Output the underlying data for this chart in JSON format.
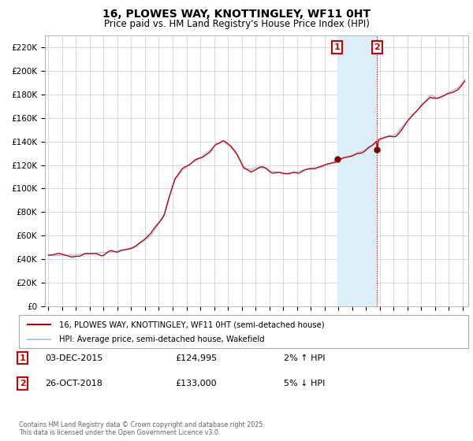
{
  "title": "16, PLOWES WAY, KNOTTINGLEY, WF11 0HT",
  "subtitle": "Price paid vs. HM Land Registry's House Price Index (HPI)",
  "ylim": [
    0,
    230000
  ],
  "sale1_date": "03-DEC-2015",
  "sale1_price": 124995,
  "sale1_pct": "2% ↑ HPI",
  "sale2_date": "26-OCT-2018",
  "sale2_price": 133000,
  "sale2_pct": "5% ↓ HPI",
  "legend_house": "16, PLOWES WAY, KNOTTINGLEY, WF11 0HT (semi-detached house)",
  "legend_hpi": "HPI: Average price, semi-detached house, Wakefield",
  "footer": "Contains HM Land Registry data © Crown copyright and database right 2025.\nThis data is licensed under the Open Government Licence v3.0.",
  "house_color": "#cc0000",
  "hpi_color": "#aac8e8",
  "bg_color": "#ffffff",
  "plot_bg": "#ffffff",
  "grid_color": "#cccccc",
  "shade_color": "#ddeef8",
  "vline_color": "#cc0000",
  "vline_style": ":",
  "marker_color": "#8b0000",
  "box_color": "#cc0000"
}
